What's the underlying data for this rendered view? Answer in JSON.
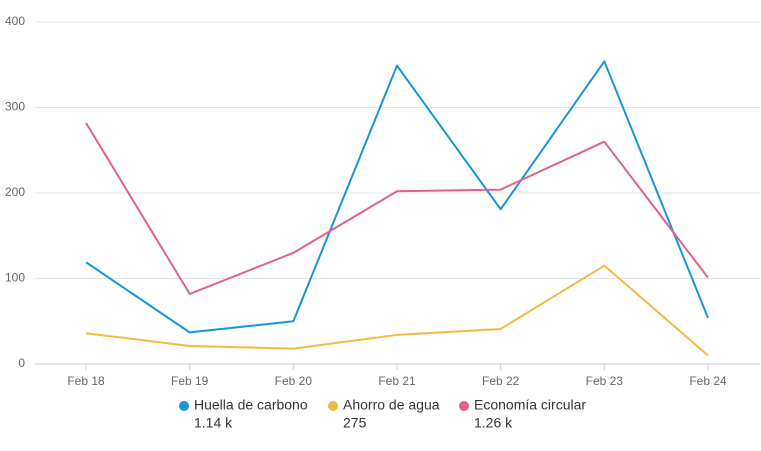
{
  "chart_data": {
    "type": "line",
    "categories": [
      "Feb 18",
      "Feb 19",
      "Feb 20",
      "Feb 21",
      "Feb 22",
      "Feb 23",
      "Feb 24"
    ],
    "series": [
      {
        "name": "Huella de carbono",
        "color": "#1a96d8",
        "values": [
          119,
          37,
          50,
          349,
          181,
          354,
          54
        ],
        "summary": "1.14 k"
      },
      {
        "name": "Ahorro de agua",
        "color": "#f4b942",
        "values": [
          36,
          21,
          18,
          34,
          41,
          115,
          10
        ],
        "summary": "275"
      },
      {
        "name": "Economía circular",
        "color": "#e0628f",
        "values": [
          282,
          82,
          130,
          202,
          204,
          260,
          101
        ],
        "summary": "1.26 k"
      }
    ],
    "ylim": [
      0,
      400
    ],
    "yticks": [
      0,
      100,
      200,
      300,
      400
    ],
    "grid": true
  }
}
